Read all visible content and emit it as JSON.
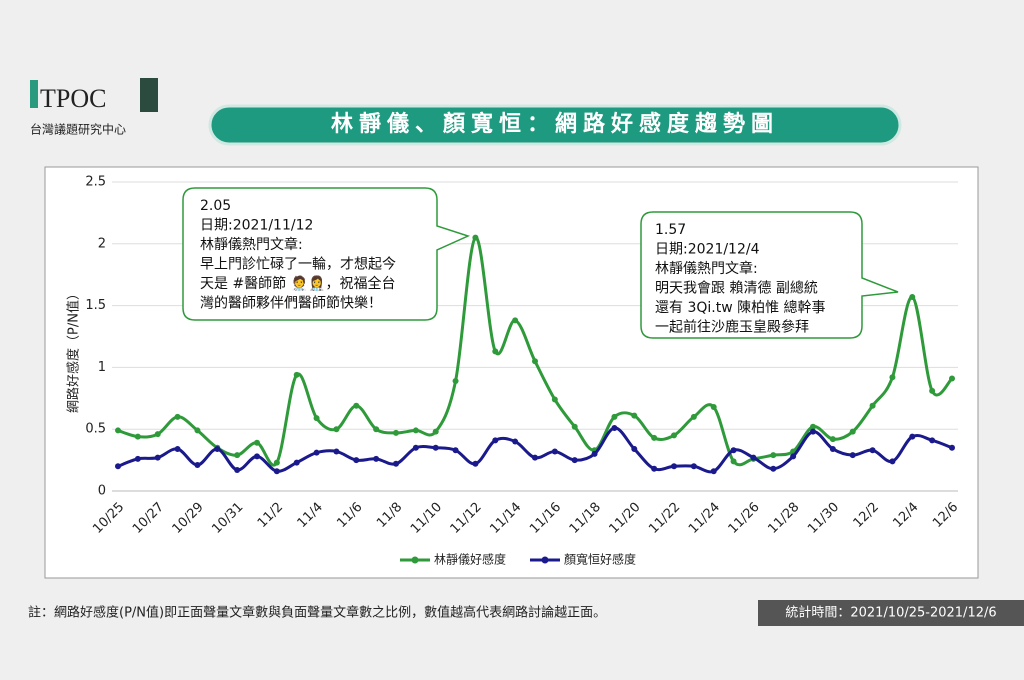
{
  "logo": {
    "name": "TPOC",
    "subtitle": "台灣議題研究中心"
  },
  "chart_data": {
    "type": "line",
    "title": "林靜儀、顏寬恒：網路好感度趨勢圖",
    "y_label": "網路好感度（P/N值）",
    "categories": [
      "10/25",
      null,
      "10/27",
      null,
      "10/29",
      null,
      "10/31",
      null,
      "11/2",
      null,
      "11/4",
      null,
      "11/6",
      null,
      "11/8",
      null,
      "11/10",
      null,
      "11/12",
      null,
      "11/14",
      null,
      "11/16",
      null,
      "11/18",
      null,
      "11/20",
      null,
      "11/22",
      null,
      "11/24",
      null,
      "11/26",
      null,
      "11/28",
      null,
      "11/30",
      null,
      "12/2",
      null,
      "12/4",
      null,
      "12/6"
    ],
    "series": [
      {
        "name": "林靜儀好感度",
        "color": "#2e9a3a",
        "values": [
          0.49,
          0.44,
          0.46,
          0.6,
          0.49,
          0.35,
          0.29,
          0.39,
          0.23,
          0.94,
          0.59,
          0.5,
          0.69,
          0.5,
          0.47,
          0.49,
          0.48,
          0.89,
          2.05,
          1.13,
          1.38,
          1.05,
          0.74,
          0.52,
          0.33,
          0.6,
          0.61,
          0.43,
          0.45,
          0.6,
          0.68,
          0.24,
          0.26,
          0.29,
          0.32,
          0.52,
          0.42,
          0.48,
          0.69,
          0.92,
          1.57,
          0.81,
          0.91
        ]
      },
      {
        "name": "顏寬恒好感度",
        "color": "#1a1a8c",
        "values": [
          0.2,
          0.26,
          0.27,
          0.34,
          0.21,
          0.34,
          0.17,
          0.28,
          0.16,
          0.23,
          0.31,
          0.32,
          0.25,
          0.26,
          0.22,
          0.35,
          0.35,
          0.33,
          0.22,
          0.41,
          0.4,
          0.27,
          0.32,
          0.25,
          0.3,
          0.51,
          0.34,
          0.18,
          0.2,
          0.2,
          0.16,
          0.33,
          0.27,
          0.18,
          0.28,
          0.48,
          0.34,
          0.29,
          0.33,
          0.24,
          0.44,
          0.41,
          0.35
        ]
      }
    ],
    "ylim": [
      0,
      2.5
    ],
    "yticks": [
      0,
      0.5,
      1,
      1.5,
      2,
      2.5
    ],
    "grid": true,
    "legend": "bottom",
    "annotations": [
      {
        "lines": [
          "2.05",
          "日期:2021/11/12",
          "林靜儀熱門文章:",
          "早上門診忙碌了一輪，才想起今",
          "天是 #醫師節 🧑‍⚕️👩‍⚕️，祝福全台",
          "灣的醫師夥伴們醫師節快樂！"
        ]
      },
      {
        "lines": [
          "1.57",
          "日期:2021/12/4",
          "林靜儀熱門文章:",
          "明天我會跟 賴清德 副總統",
          "還有 3Qi.tw 陳柏惟 總幹事",
          "一起前往沙鹿玉皇殿參拜"
        ]
      }
    ]
  },
  "footer": {
    "note": "註：網路好感度(P/N值)即正面聲量文章數與負面聲量文章數之比例，數值越高代表網路討論越正面。",
    "period": "統計時間：2021/10/25-2021/12/6"
  }
}
